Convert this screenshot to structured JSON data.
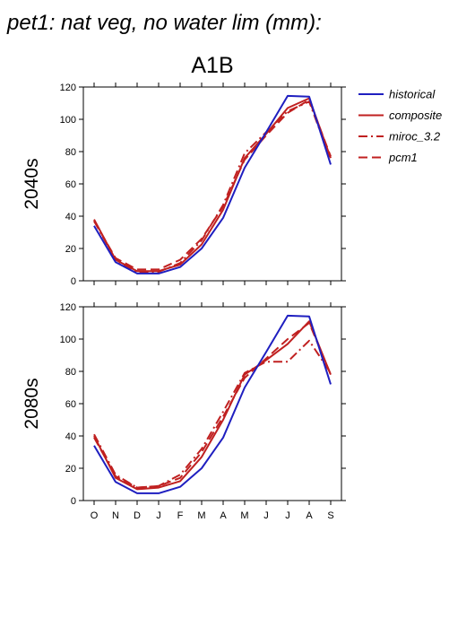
{
  "title": "pet1: nat veg, no water lim (mm):",
  "scenario": "A1B",
  "colors": {
    "historical": "#1f1fc0",
    "model": "#c02020"
  },
  "chart_data": [
    {
      "type": "line",
      "panel": "2040s",
      "categories": [
        "O",
        "N",
        "D",
        "J",
        "F",
        "M",
        "A",
        "M",
        "J",
        "J",
        "A",
        "S"
      ],
      "ylim": [
        0,
        120
      ],
      "yticks": [
        "0",
        "20",
        "40",
        "60",
        "80",
        "100",
        "120"
      ],
      "series": [
        {
          "name": "historical",
          "dash": "solid",
          "values": [
            34,
            11.5,
            4.5,
            4.5,
            8.5,
            20,
            39,
            70,
            92,
            114.5,
            114,
            72
          ]
        },
        {
          "name": "composite",
          "dash": "solid",
          "values": [
            38,
            13,
            6,
            6,
            10,
            22.5,
            44,
            76,
            91,
            107,
            113,
            76
          ]
        },
        {
          "name": "miroc_3.2",
          "dash": "dashdot",
          "values": [
            37,
            13,
            5,
            5.5,
            11,
            25,
            47,
            79,
            92,
            105,
            111,
            75
          ]
        },
        {
          "name": "pcm1",
          "dash": "dashed",
          "values": [
            37,
            14,
            7,
            7,
            13,
            26,
            46,
            75,
            90,
            104,
            112,
            77
          ]
        }
      ]
    },
    {
      "type": "line",
      "panel": "2080s",
      "categories": [
        "O",
        "N",
        "D",
        "J",
        "F",
        "M",
        "A",
        "M",
        "J",
        "J",
        "A",
        "S"
      ],
      "ylim": [
        0,
        120
      ],
      "yticks": [
        "0",
        "20",
        "40",
        "60",
        "80",
        "100",
        "120"
      ],
      "series": [
        {
          "name": "historical",
          "dash": "solid",
          "values": [
            34,
            11.5,
            4.5,
            4.5,
            8.5,
            20,
            39,
            70,
            92,
            114.5,
            114,
            72
          ]
        },
        {
          "name": "composite",
          "dash": "solid",
          "values": [
            40,
            14,
            7,
            8,
            12,
            27,
            50,
            78,
            87,
            97,
            111,
            78
          ]
        },
        {
          "name": "miroc_3.2",
          "dash": "dashdot",
          "values": [
            41,
            16,
            8,
            9,
            16,
            32,
            55,
            79,
            86,
            86,
            99,
            79
          ]
        },
        {
          "name": "pcm1",
          "dash": "dashed",
          "values": [
            39,
            15,
            8,
            9,
            14,
            30,
            52,
            76,
            88,
            100,
            110,
            78
          ]
        }
      ]
    }
  ]
}
